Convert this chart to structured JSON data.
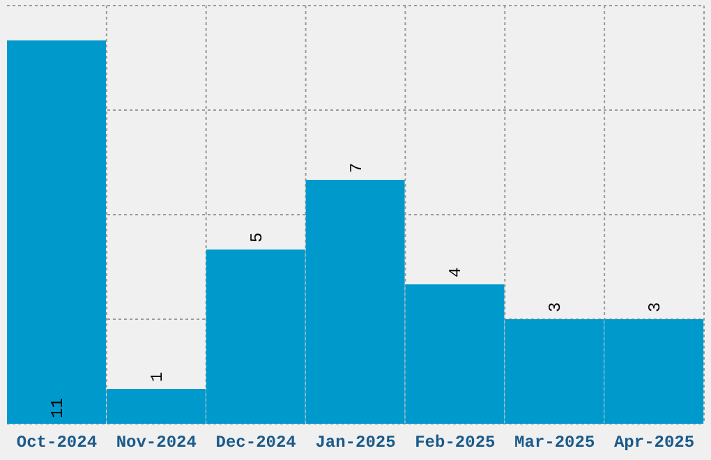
{
  "chart_data": {
    "type": "bar",
    "categories": [
      "Oct-2024",
      "Nov-2024",
      "Dec-2024",
      "Jan-2025",
      "Feb-2025",
      "Mar-2025",
      "Apr-2025"
    ],
    "values": [
      11,
      1,
      5,
      7,
      4,
      3,
      3
    ],
    "color": "#0099cc",
    "data_labels": true,
    "grid": true,
    "tick_labels": "x",
    "ylim": [
      0,
      12
    ],
    "yticks": [
      {
        "value": 0,
        "label": null
      },
      {
        "value": 3,
        "label": null
      },
      {
        "value": 6,
        "label": null
      },
      {
        "value": 9,
        "label": null
      },
      {
        "value": 12,
        "label": null
      }
    ]
  }
}
